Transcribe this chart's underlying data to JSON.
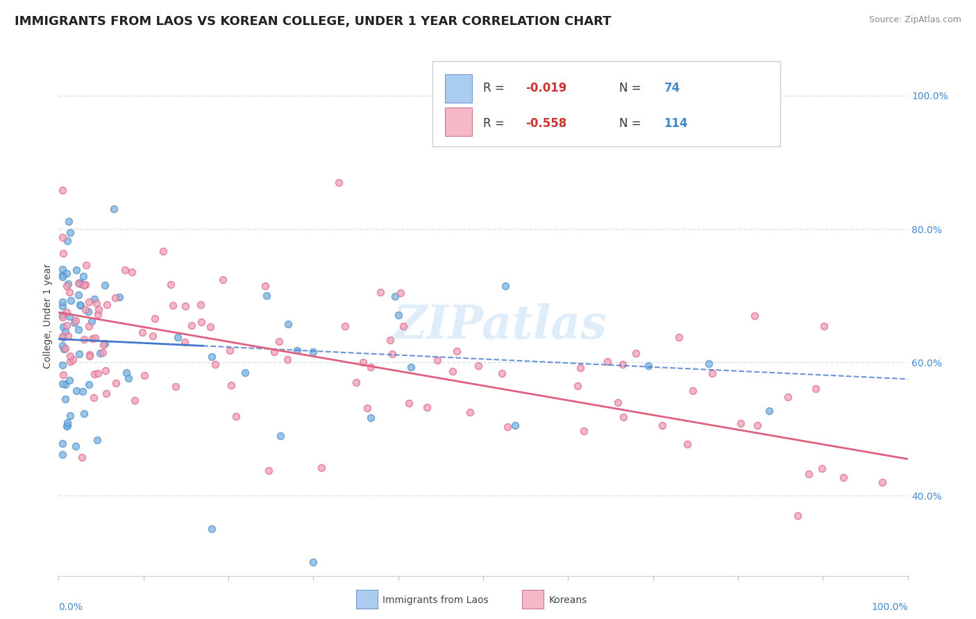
{
  "title": "IMMIGRANTS FROM LAOS VS KOREAN COLLEGE, UNDER 1 YEAR CORRELATION CHART",
  "source_text": "Source: ZipAtlas.com",
  "ylabel": "College, Under 1 year",
  "ylabel_right_ticks": [
    "100.0%",
    "80.0%",
    "60.0%",
    "40.0%"
  ],
  "ylabel_right_vals": [
    1.0,
    0.8,
    0.6,
    0.4
  ],
  "watermark": "ZIPatlas",
  "laos_color": "#7ab4e0",
  "laos_edge_color": "#5595cc",
  "korean_color": "#f0a0b8",
  "korean_edge_color": "#e07090",
  "trend_laos_color": "#4477cc",
  "trend_korean_color": "#e06080",
  "background_color": "#ffffff",
  "grid_color": "#d0dff0",
  "trend_laos_y0": 0.635,
  "trend_laos_y1": 0.575,
  "trend_korean_y0": 0.675,
  "trend_korean_y1": 0.455,
  "xlim": [
    0.0,
    1.0
  ],
  "ylim": [
    0.28,
    1.06
  ],
  "title_fontsize": 13,
  "source_fontsize": 9,
  "axis_label_fontsize": 10,
  "legend_fontsize": 12,
  "scatter_size": 50
}
